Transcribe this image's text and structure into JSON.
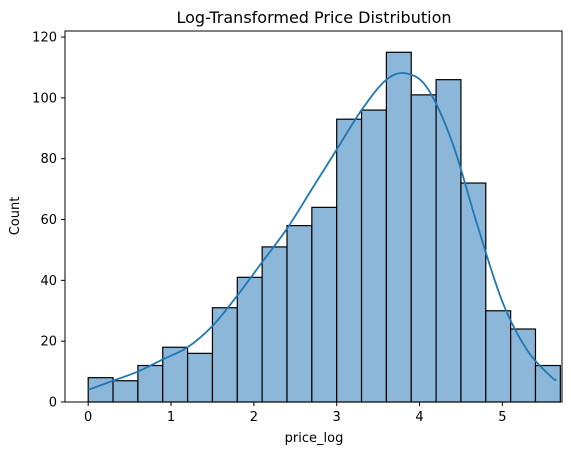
{
  "chart_data": {
    "type": "bar",
    "title": "Log-Transformed Price Distribution",
    "xlabel": "price_log",
    "ylabel": "Count",
    "xlim": [
      -0.28,
      5.72
    ],
    "ylim": [
      0,
      122
    ],
    "xticks": [
      0,
      1,
      2,
      3,
      4,
      5
    ],
    "yticks": [
      0,
      20,
      40,
      60,
      80,
      100,
      120
    ],
    "bins": {
      "start": 0.0,
      "width": 0.3,
      "counts": [
        8,
        7,
        12,
        18,
        16,
        31,
        41,
        51,
        58,
        64,
        93,
        96,
        115,
        101,
        106,
        72,
        30,
        24,
        12
      ]
    },
    "kde": {
      "x": [
        0.0,
        0.3,
        0.6,
        0.9,
        1.2,
        1.5,
        1.8,
        2.1,
        2.4,
        2.7,
        3.0,
        3.3,
        3.6,
        3.85,
        4.1,
        4.4,
        4.7,
        5.0,
        5.3,
        5.6,
        5.65
      ],
      "y": [
        4,
        7,
        10,
        14,
        18,
        25,
        35,
        46,
        57,
        70,
        83,
        96,
        106,
        108,
        103,
        85,
        58,
        33,
        17,
        8,
        7.5
      ]
    },
    "colors": {
      "bar_fill": "#8cb7d9",
      "bar_edge": "#000000",
      "kde_line": "#1f77b4"
    },
    "grid": false,
    "legend": "none"
  }
}
